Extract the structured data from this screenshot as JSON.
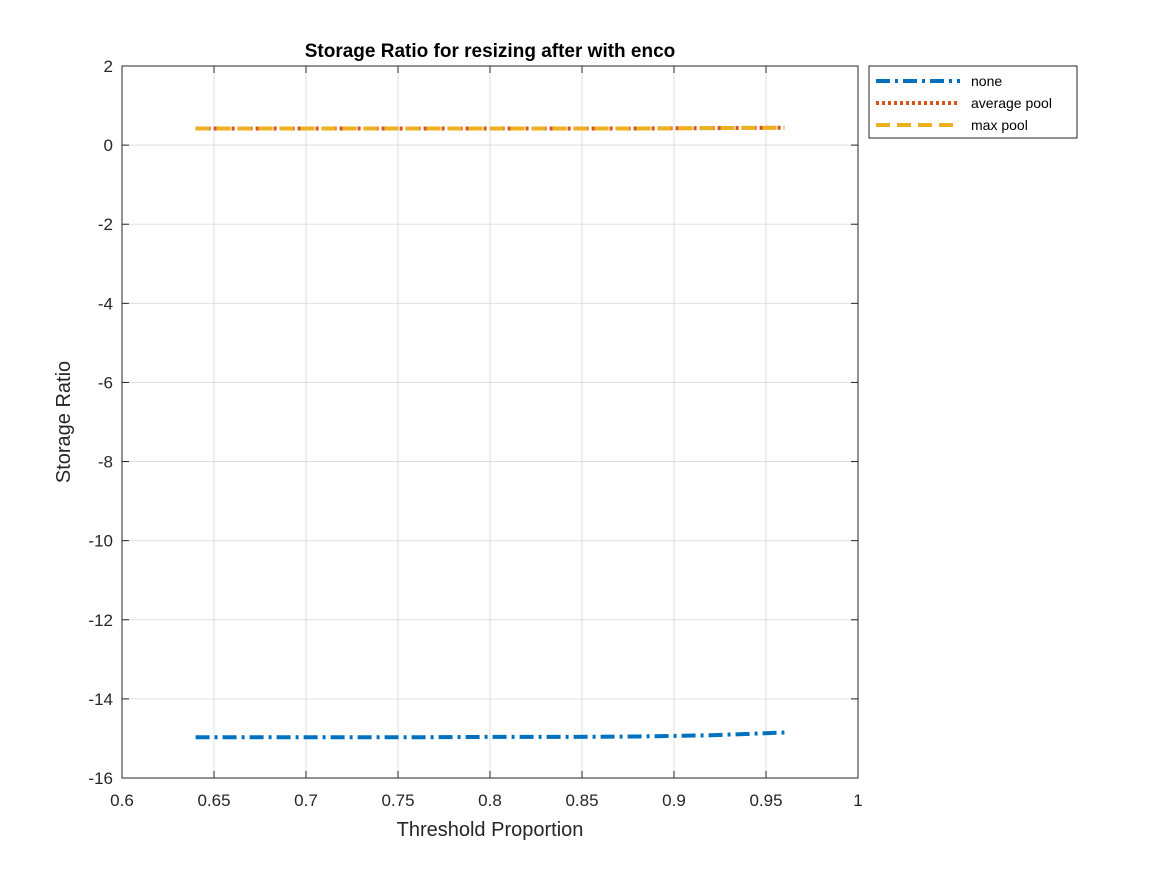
{
  "chart_data": {
    "type": "line",
    "title": "Storage Ratio for resizing after with enco",
    "xlabel": "Threshold Proportion",
    "ylabel": "Storage Ratio",
    "xlim": [
      0.6,
      1.0
    ],
    "ylim": [
      -16,
      2
    ],
    "xticks": [
      0.6,
      0.65,
      0.7,
      0.75,
      0.8,
      0.85,
      0.9,
      0.95,
      1
    ],
    "xtick_labels": [
      "0.6",
      "0.65",
      "0.7",
      "0.75",
      "0.8",
      "0.85",
      "0.9",
      "0.95",
      "1"
    ],
    "yticks": [
      -16,
      -14,
      -12,
      -10,
      -8,
      -6,
      -4,
      -2,
      0,
      2
    ],
    "ytick_labels": [
      "-16",
      "-14",
      "-12",
      "-10",
      "-8",
      "-6",
      "-4",
      "-2",
      "0",
      "2"
    ],
    "grid": true,
    "legend_position": "outside-top-right",
    "series": [
      {
        "name": "none",
        "color": "#0072BD",
        "style": "dash-dot",
        "x": [
          0.64,
          0.68,
          0.72,
          0.76,
          0.8,
          0.84,
          0.88,
          0.92,
          0.96
        ],
        "y": [
          -14.97,
          -14.97,
          -14.97,
          -14.97,
          -14.96,
          -14.96,
          -14.95,
          -14.92,
          -14.85
        ]
      },
      {
        "name": "average pool",
        "color": "#D95319",
        "style": "dotted",
        "x": [
          0.64,
          0.68,
          0.72,
          0.76,
          0.8,
          0.84,
          0.88,
          0.92,
          0.96
        ],
        "y": [
          0.42,
          0.42,
          0.42,
          0.42,
          0.42,
          0.42,
          0.42,
          0.43,
          0.44
        ]
      },
      {
        "name": "max pool",
        "color": "#EDB120",
        "style": "dashed",
        "x": [
          0.64,
          0.68,
          0.72,
          0.76,
          0.8,
          0.84,
          0.88,
          0.92,
          0.96
        ],
        "y": [
          0.42,
          0.42,
          0.42,
          0.42,
          0.42,
          0.42,
          0.42,
          0.43,
          0.44
        ]
      }
    ]
  }
}
